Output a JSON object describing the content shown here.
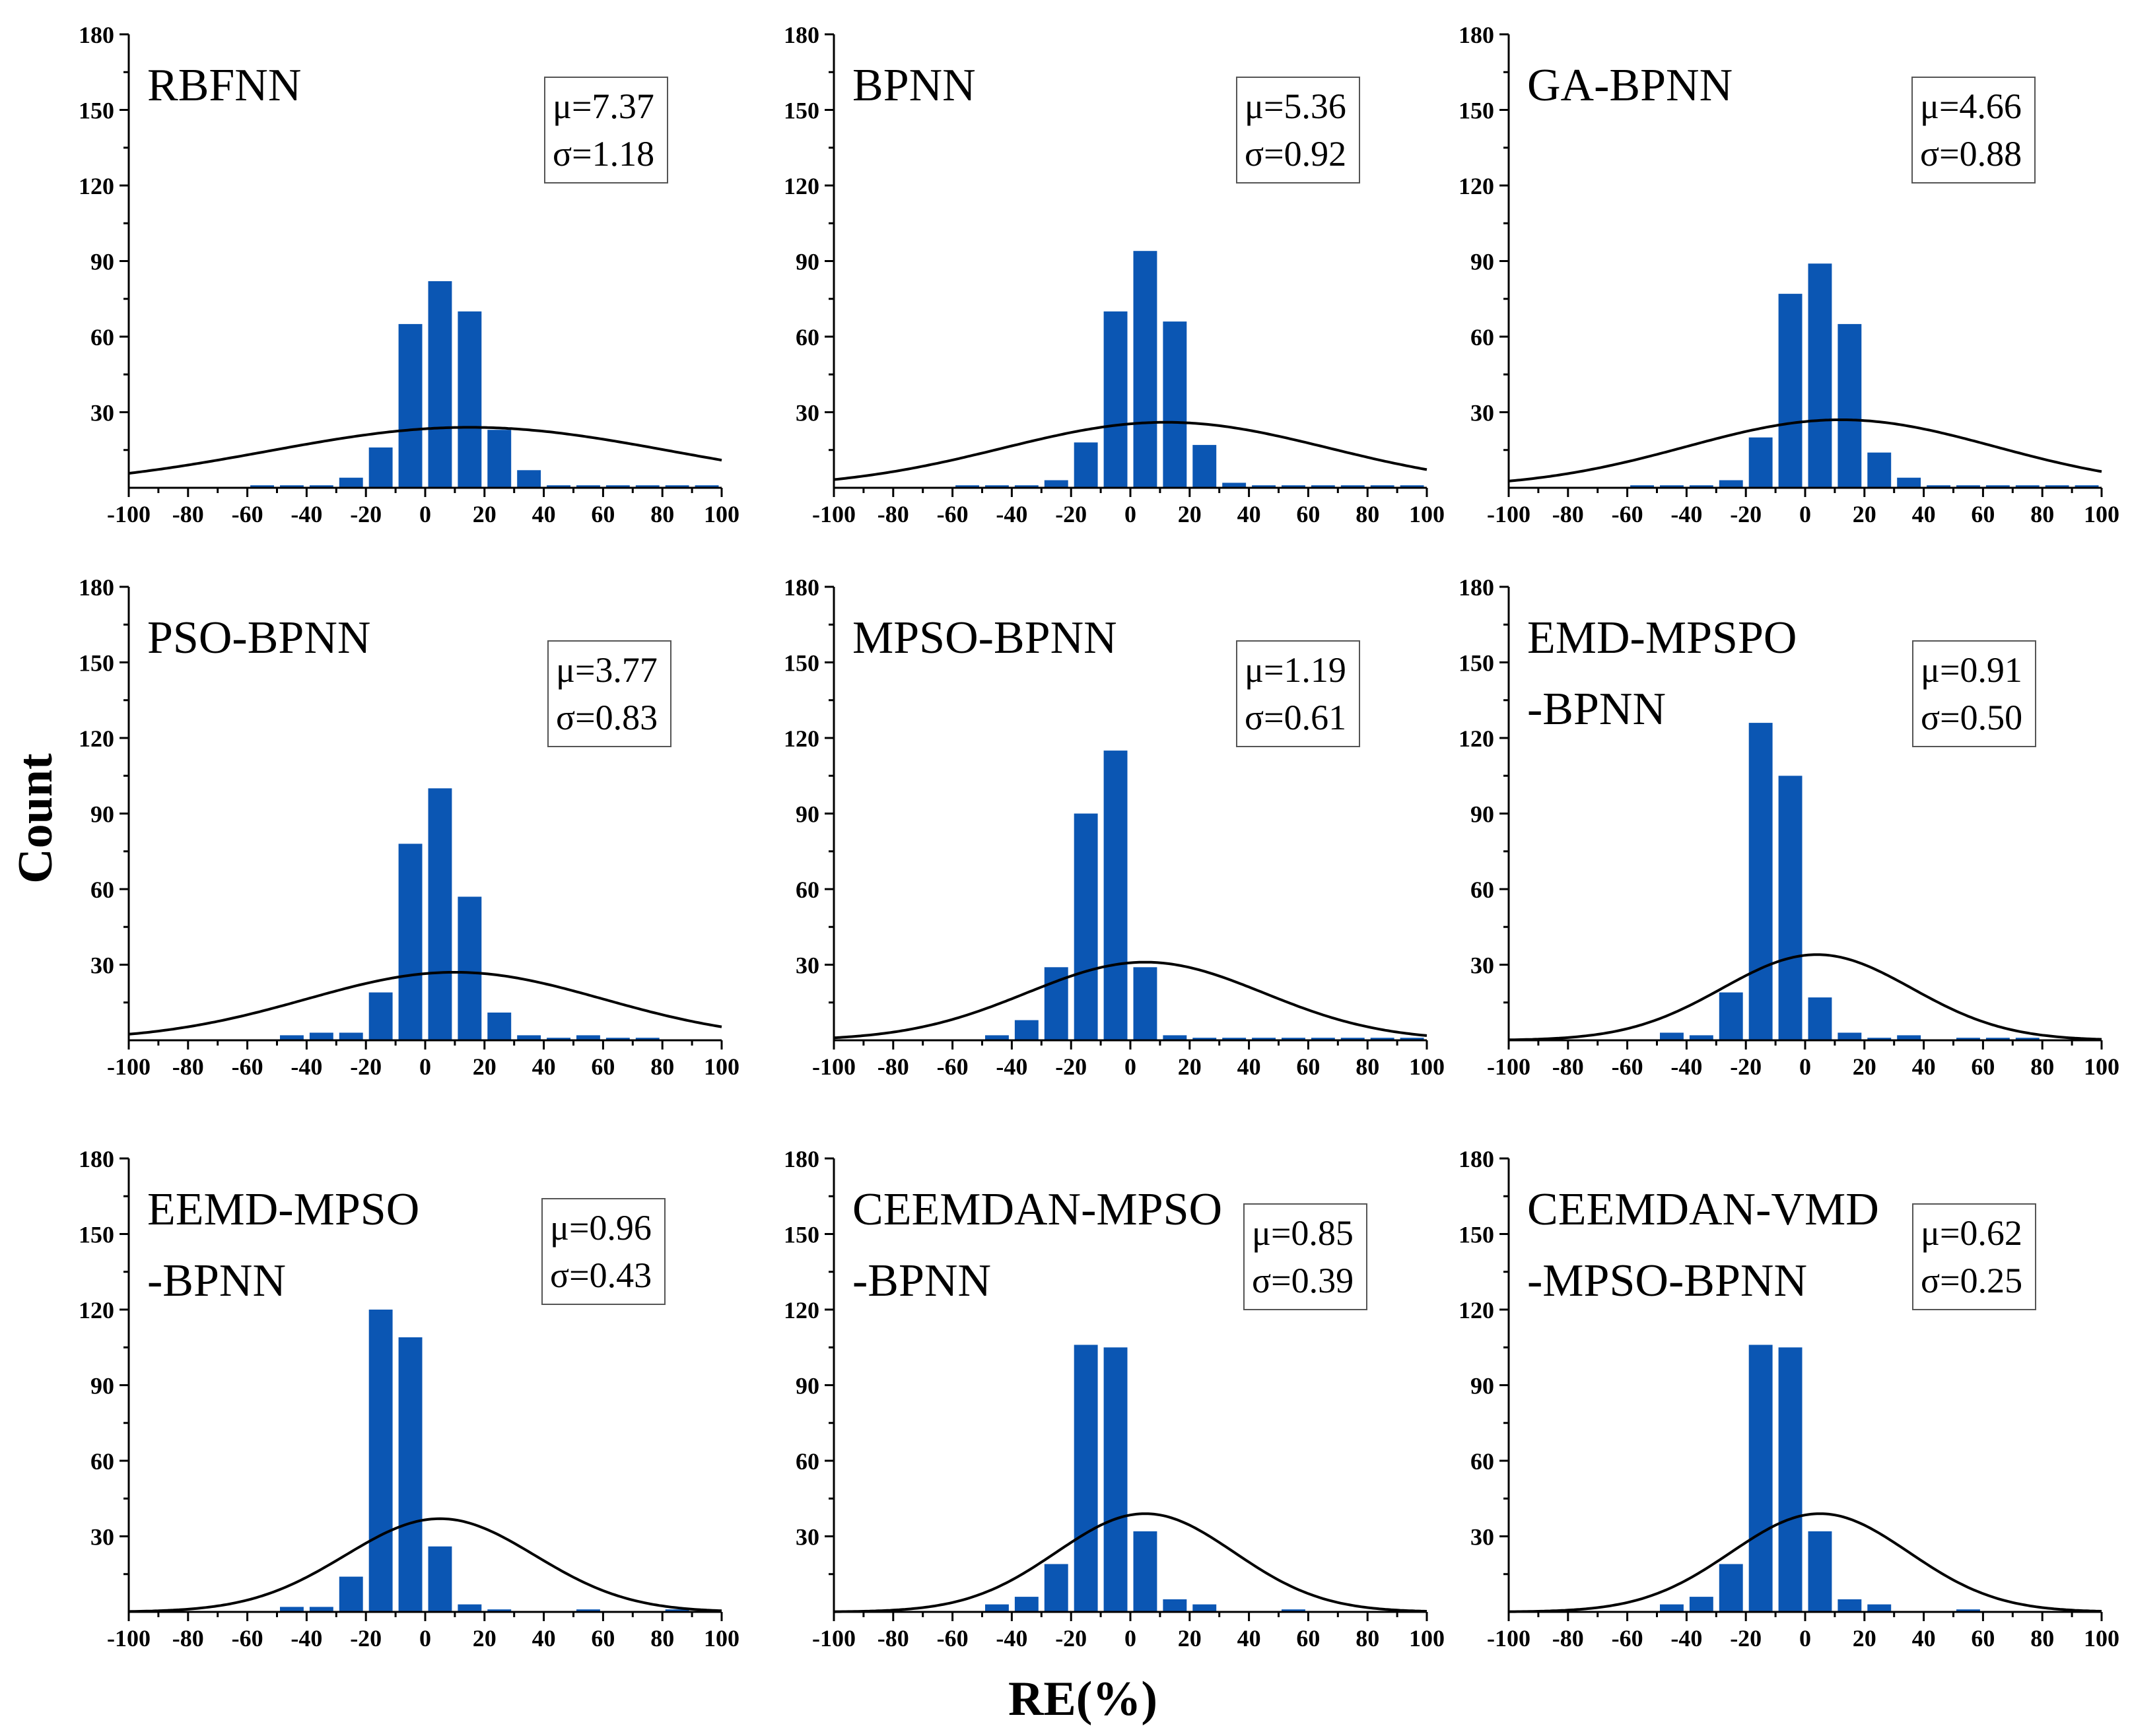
{
  "figure": {
    "ylabel": "Count",
    "xlabel": "RE(%)"
  },
  "colors": {
    "bar": "#0b56b3",
    "curve": "#000000",
    "axis": "#000000"
  },
  "chart_data": [
    {
      "type": "bar",
      "title_lines": [
        "RBFNN"
      ],
      "stats": [
        "μ=7.37",
        "σ=1.18"
      ],
      "x": [
        -55,
        -45,
        -35,
        -25,
        -15,
        -5,
        5,
        15,
        25,
        35,
        45,
        55,
        65,
        75,
        85,
        95
      ],
      "values": [
        1,
        1,
        1,
        4,
        16,
        65,
        82,
        70,
        23,
        7,
        1,
        1,
        1,
        1,
        1,
        1
      ],
      "curve_mean": 15,
      "curve_sd": 68,
      "curve_peak": 24,
      "xlim": [
        -100,
        100
      ],
      "ylim": [
        0,
        180
      ],
      "xticks": [
        "-100",
        "-80",
        "-60",
        "-40",
        "-20",
        "0",
        "20",
        "40",
        "60",
        "80",
        "100"
      ],
      "yticks": [
        "30",
        "60",
        "90",
        "120",
        "150",
        "180"
      ]
    },
    {
      "type": "bar",
      "title_lines": [
        "BPNN"
      ],
      "stats": [
        "μ=5.36",
        "σ=0.92"
      ],
      "x": [
        -55,
        -45,
        -35,
        -25,
        -15,
        -5,
        5,
        15,
        25,
        35,
        45,
        55,
        65,
        75,
        85,
        95
      ],
      "values": [
        1,
        1,
        1,
        3,
        18,
        70,
        94,
        66,
        17,
        2,
        1,
        1,
        1,
        1,
        1,
        1
      ],
      "curve_mean": 12,
      "curve_sd": 55,
      "curve_peak": 26,
      "xlim": [
        -100,
        100
      ],
      "ylim": [
        0,
        180
      ],
      "xticks": [
        "-100",
        "-80",
        "-60",
        "-40",
        "-20",
        "0",
        "20",
        "40",
        "60",
        "80",
        "100"
      ],
      "yticks": [
        "30",
        "60",
        "90",
        "120",
        "150",
        "180"
      ]
    },
    {
      "type": "bar",
      "title_lines": [
        "GA-BPNN"
      ],
      "stats": [
        "μ=4.66",
        "σ=0.88"
      ],
      "x": [
        -55,
        -45,
        -35,
        -25,
        -15,
        -5,
        5,
        15,
        25,
        35,
        45,
        55,
        65,
        75,
        85,
        95
      ],
      "values": [
        1,
        1,
        1,
        3,
        20,
        77,
        89,
        65,
        14,
        4,
        1,
        1,
        1,
        1,
        1,
        1
      ],
      "curve_mean": 12,
      "curve_sd": 52,
      "curve_peak": 27,
      "xlim": [
        -100,
        100
      ],
      "ylim": [
        0,
        180
      ],
      "xticks": [
        "-100",
        "-80",
        "-60",
        "-40",
        "-20",
        "0",
        "20",
        "40",
        "60",
        "80",
        "100"
      ],
      "yticks": [
        "30",
        "60",
        "90",
        "120",
        "150",
        "180"
      ]
    },
    {
      "type": "bar",
      "title_lines": [
        "PSO-BPNN"
      ],
      "stats": [
        "μ=3.77",
        "σ=0.83"
      ],
      "x": [
        -55,
        -45,
        -35,
        -25,
        -15,
        -5,
        5,
        15,
        25,
        35,
        45,
        55,
        65,
        75,
        85,
        95
      ],
      "values": [
        0,
        2,
        3,
        3,
        19,
        78,
        100,
        57,
        11,
        2,
        1,
        2,
        1,
        1,
        0,
        0
      ],
      "curve_mean": 10,
      "curve_sd": 50,
      "curve_peak": 27,
      "xlim": [
        -100,
        100
      ],
      "ylim": [
        0,
        180
      ],
      "xticks": [
        "-100",
        "-80",
        "-60",
        "-40",
        "-20",
        "0",
        "20",
        "40",
        "60",
        "80",
        "100"
      ],
      "yticks": [
        "30",
        "60",
        "90",
        "120",
        "150",
        "180"
      ]
    },
    {
      "type": "bar",
      "title_lines": [
        "MPSO-BPNN"
      ],
      "stats": [
        "μ=1.19",
        "σ=0.61"
      ],
      "x": [
        -55,
        -45,
        -35,
        -25,
        -15,
        -5,
        5,
        15,
        25,
        35,
        45,
        55,
        65,
        75,
        85,
        95
      ],
      "values": [
        0,
        2,
        8,
        29,
        90,
        115,
        29,
        2,
        1,
        1,
        1,
        1,
        1,
        1,
        1,
        1
      ],
      "curve_mean": 5,
      "curve_sd": 40,
      "curve_peak": 31,
      "xlim": [
        -100,
        100
      ],
      "ylim": [
        0,
        180
      ],
      "xticks": [
        "-100",
        "-80",
        "-60",
        "-40",
        "-20",
        "0",
        "20",
        "40",
        "60",
        "80",
        "100"
      ],
      "yticks": [
        "30",
        "60",
        "90",
        "120",
        "150",
        "180"
      ]
    },
    {
      "type": "bar",
      "title_lines": [
        "EMD-MPSPO",
        "-BPNN"
      ],
      "stats": [
        "μ=0.91",
        "σ=0.50"
      ],
      "x": [
        -55,
        -45,
        -35,
        -25,
        -15,
        -5,
        5,
        15,
        25,
        35,
        45,
        55,
        65,
        75,
        85,
        95
      ],
      "values": [
        0,
        3,
        2,
        19,
        126,
        105,
        17,
        3,
        1,
        2,
        0,
        1,
        1,
        1,
        0,
        0
      ],
      "curve_mean": 4,
      "curve_sd": 32,
      "curve_peak": 34,
      "xlim": [
        -100,
        100
      ],
      "ylim": [
        0,
        180
      ],
      "xticks": [
        "-100",
        "-80",
        "-60",
        "-40",
        "-20",
        "0",
        "20",
        "40",
        "60",
        "80",
        "100"
      ],
      "yticks": [
        "30",
        "60",
        "90",
        "120",
        "150",
        "180"
      ]
    },
    {
      "type": "bar",
      "title_lines": [
        "EEMD-MPSO",
        "-BPNN"
      ],
      "stats": [
        "μ=0.96",
        "σ=0.43"
      ],
      "x": [
        -55,
        -45,
        -35,
        -25,
        -15,
        -5,
        5,
        15,
        25,
        35,
        45,
        55,
        65,
        75,
        85,
        95
      ],
      "values": [
        0,
        2,
        2,
        14,
        120,
        109,
        26,
        3,
        1,
        0,
        0,
        1,
        0,
        0,
        1,
        0
      ],
      "curve_mean": 5,
      "curve_sd": 32,
      "curve_peak": 37,
      "xlim": [
        -100,
        100
      ],
      "ylim": [
        0,
        180
      ],
      "xticks": [
        "-100",
        "-80",
        "-60",
        "-40",
        "-20",
        "0",
        "20",
        "40",
        "60",
        "80",
        "100"
      ],
      "yticks": [
        "30",
        "60",
        "90",
        "120",
        "150",
        "180"
      ]
    },
    {
      "type": "bar",
      "title_lines": [
        "CEEMDAN-MPSO",
        "-BPNN"
      ],
      "stats": [
        "μ=0.85",
        "σ=0.39"
      ],
      "x": [
        -55,
        -45,
        -35,
        -25,
        -15,
        -5,
        5,
        15,
        25,
        35,
        45,
        55,
        65,
        75,
        85,
        95
      ],
      "values": [
        0,
        3,
        6,
        19,
        106,
        105,
        32,
        5,
        3,
        0,
        0,
        1,
        0,
        0,
        0,
        0
      ],
      "curve_mean": 5,
      "curve_sd": 30,
      "curve_peak": 39,
      "xlim": [
        -100,
        100
      ],
      "ylim": [
        0,
        180
      ],
      "xticks": [
        "-100",
        "-80",
        "-60",
        "-40",
        "-20",
        "0",
        "20",
        "40",
        "60",
        "80",
        "100"
      ],
      "yticks": [
        "30",
        "60",
        "90",
        "120",
        "150",
        "180"
      ]
    },
    {
      "type": "bar",
      "title_lines": [
        "CEEMDAN-VMD",
        "-MPSO-BPNN"
      ],
      "stats": [
        "μ=0.62",
        "σ=0.25"
      ],
      "x": [
        -55,
        -45,
        -35,
        -25,
        -15,
        -5,
        5,
        15,
        25,
        35,
        45,
        55,
        65,
        75,
        85,
        95
      ],
      "values": [
        0,
        3,
        6,
        19,
        106,
        105,
        32,
        5,
        3,
        0,
        0,
        1,
        0,
        0,
        0,
        0
      ],
      "curve_mean": 5,
      "curve_sd": 30,
      "curve_peak": 39,
      "xlim": [
        -100,
        100
      ],
      "ylim": [
        0,
        180
      ],
      "xticks": [
        "-100",
        "-80",
        "-60",
        "-40",
        "-20",
        "0",
        "20",
        "40",
        "60",
        "80",
        "100"
      ],
      "yticks": [
        "30",
        "60",
        "90",
        "120",
        "150",
        "180"
      ]
    }
  ]
}
